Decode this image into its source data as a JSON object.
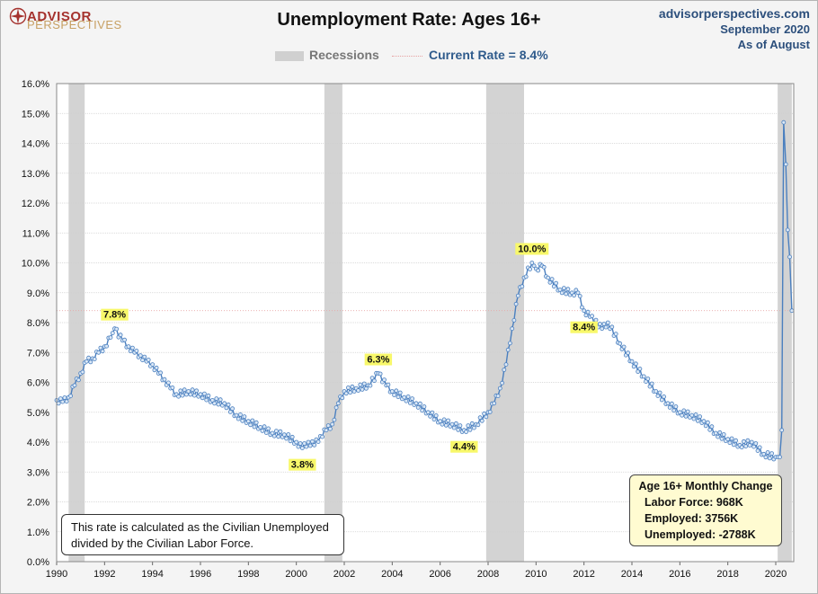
{
  "header": {
    "logo_line1": "ADVISOR",
    "logo_line2": "PERSPECTIVES",
    "title": "Unemployment Rate: Ages 16+",
    "source_site": "advisorperspectives.com",
    "source_date": "September 2020",
    "source_asof": "As of August"
  },
  "legend": {
    "recessions_label": "Recessions",
    "current_label": "Current Rate = 8.4%"
  },
  "colors": {
    "line": "#4a7fbf",
    "marker_fill": "#dbe8f6",
    "recession": "#d3d3d3",
    "highlight": "#f8f86a",
    "grid": "#d0d0d0"
  },
  "note_text": "This rate is calculated as the Civilian Unemployed divided by the Civilian Labor Force.",
  "monthly_change": {
    "title": "Age 16+ Monthly Change",
    "labor_force": "Labor Force:  968K",
    "employed": "Employed:  3756K",
    "unemployed": "Unemployed:  -2788K"
  },
  "chart_data": {
    "type": "line",
    "title": "Unemployment Rate: Ages 16+",
    "xlim": [
      1990,
      2020.75
    ],
    "ylim": [
      0,
      16
    ],
    "ytick_labels": [
      "0.0%",
      "1.0%",
      "2.0%",
      "3.0%",
      "4.0%",
      "5.0%",
      "6.0%",
      "7.0%",
      "8.0%",
      "9.0%",
      "10.0%",
      "11.0%",
      "12.0%",
      "13.0%",
      "14.0%",
      "15.0%",
      "16.0%"
    ],
    "xtick_labels": [
      "1990",
      "1992",
      "1994",
      "1996",
      "1998",
      "2000",
      "2002",
      "2004",
      "2006",
      "2008",
      "2010",
      "2012",
      "2014",
      "2016",
      "2018",
      "2020"
    ],
    "grid": true,
    "recessions": [
      [
        1990.5,
        1991.17
      ],
      [
        2001.17,
        2001.92
      ],
      [
        2007.92,
        2009.5
      ],
      [
        2020.08,
        2020.67
      ]
    ],
    "current_rate": 8.4,
    "annotations": [
      {
        "label": "7.8%",
        "x": 1992.42,
        "y": 7.8,
        "pos": "above"
      },
      {
        "label": "3.8%",
        "x": 2000.25,
        "y": 3.8,
        "pos": "below"
      },
      {
        "label": "6.3%",
        "x": 2003.42,
        "y": 6.3,
        "pos": "above"
      },
      {
        "label": "4.4%",
        "x": 2007.0,
        "y": 4.4,
        "pos": "below"
      },
      {
        "label": "10.0%",
        "x": 2009.83,
        "y": 10.0,
        "pos": "above"
      },
      {
        "label": "8.4%",
        "x": 2012.0,
        "y": 8.4,
        "pos": "below"
      }
    ],
    "series": [
      {
        "points": [
          [
            1990.0,
            5.4
          ],
          [
            1990.25,
            5.35
          ],
          [
            1990.5,
            5.5
          ],
          [
            1990.75,
            5.9
          ],
          [
            1991.0,
            6.3
          ],
          [
            1991.25,
            6.7
          ],
          [
            1991.5,
            6.8
          ],
          [
            1991.75,
            7.0
          ],
          [
            1992.0,
            7.2
          ],
          [
            1992.25,
            7.5
          ],
          [
            1992.42,
            7.8
          ],
          [
            1992.75,
            7.4
          ],
          [
            1993.0,
            7.2
          ],
          [
            1993.25,
            7.0
          ],
          [
            1993.5,
            6.9
          ],
          [
            1993.75,
            6.7
          ],
          [
            1994.0,
            6.6
          ],
          [
            1994.25,
            6.3
          ],
          [
            1994.5,
            6.1
          ],
          [
            1994.75,
            5.8
          ],
          [
            1995.0,
            5.6
          ],
          [
            1995.5,
            5.7
          ],
          [
            1996.0,
            5.6
          ],
          [
            1996.5,
            5.4
          ],
          [
            1997.0,
            5.3
          ],
          [
            1997.5,
            4.9
          ],
          [
            1998.0,
            4.7
          ],
          [
            1998.5,
            4.5
          ],
          [
            1999.0,
            4.3
          ],
          [
            1999.5,
            4.25
          ],
          [
            2000.0,
            4.0
          ],
          [
            2000.25,
            3.8
          ],
          [
            2000.5,
            4.0
          ],
          [
            2000.75,
            3.9
          ],
          [
            2001.0,
            4.2
          ],
          [
            2001.25,
            4.4
          ],
          [
            2001.5,
            4.6
          ],
          [
            2001.75,
            5.3
          ],
          [
            2002.0,
            5.7
          ],
          [
            2002.5,
            5.8
          ],
          [
            2003.0,
            5.9
          ],
          [
            2003.42,
            6.3
          ],
          [
            2003.75,
            5.9
          ],
          [
            2004.0,
            5.7
          ],
          [
            2004.5,
            5.5
          ],
          [
            2005.0,
            5.3
          ],
          [
            2005.5,
            5.0
          ],
          [
            2006.0,
            4.7
          ],
          [
            2006.5,
            4.6
          ],
          [
            2007.0,
            4.4
          ],
          [
            2007.5,
            4.6
          ],
          [
            2008.0,
            5.0
          ],
          [
            2008.25,
            5.3
          ],
          [
            2008.5,
            5.8
          ],
          [
            2008.75,
            6.6
          ],
          [
            2009.0,
            7.8
          ],
          [
            2009.25,
            8.9
          ],
          [
            2009.5,
            9.5
          ],
          [
            2009.83,
            10.0
          ],
          [
            2010.0,
            9.8
          ],
          [
            2010.25,
            9.9
          ],
          [
            2010.5,
            9.5
          ],
          [
            2011.0,
            9.1
          ],
          [
            2011.5,
            9.0
          ],
          [
            2011.75,
            9.0
          ],
          [
            2012.0,
            8.4
          ],
          [
            2012.25,
            8.2
          ],
          [
            2012.75,
            7.8
          ],
          [
            2013.0,
            8.0
          ],
          [
            2013.5,
            7.3
          ],
          [
            2014.0,
            6.7
          ],
          [
            2014.5,
            6.2
          ],
          [
            2015.0,
            5.7
          ],
          [
            2015.5,
            5.3
          ],
          [
            2016.0,
            5.0
          ],
          [
            2016.5,
            4.9
          ],
          [
            2017.0,
            4.7
          ],
          [
            2017.5,
            4.3
          ],
          [
            2018.0,
            4.1
          ],
          [
            2018.5,
            3.9
          ],
          [
            2019.0,
            4.0
          ],
          [
            2019.5,
            3.6
          ],
          [
            2020.0,
            3.5
          ],
          [
            2020.17,
            3.5
          ],
          [
            2020.25,
            4.4
          ],
          [
            2020.33,
            14.7
          ],
          [
            2020.42,
            13.3
          ],
          [
            2020.5,
            11.1
          ],
          [
            2020.58,
            10.2
          ],
          [
            2020.67,
            8.4
          ]
        ]
      }
    ]
  }
}
